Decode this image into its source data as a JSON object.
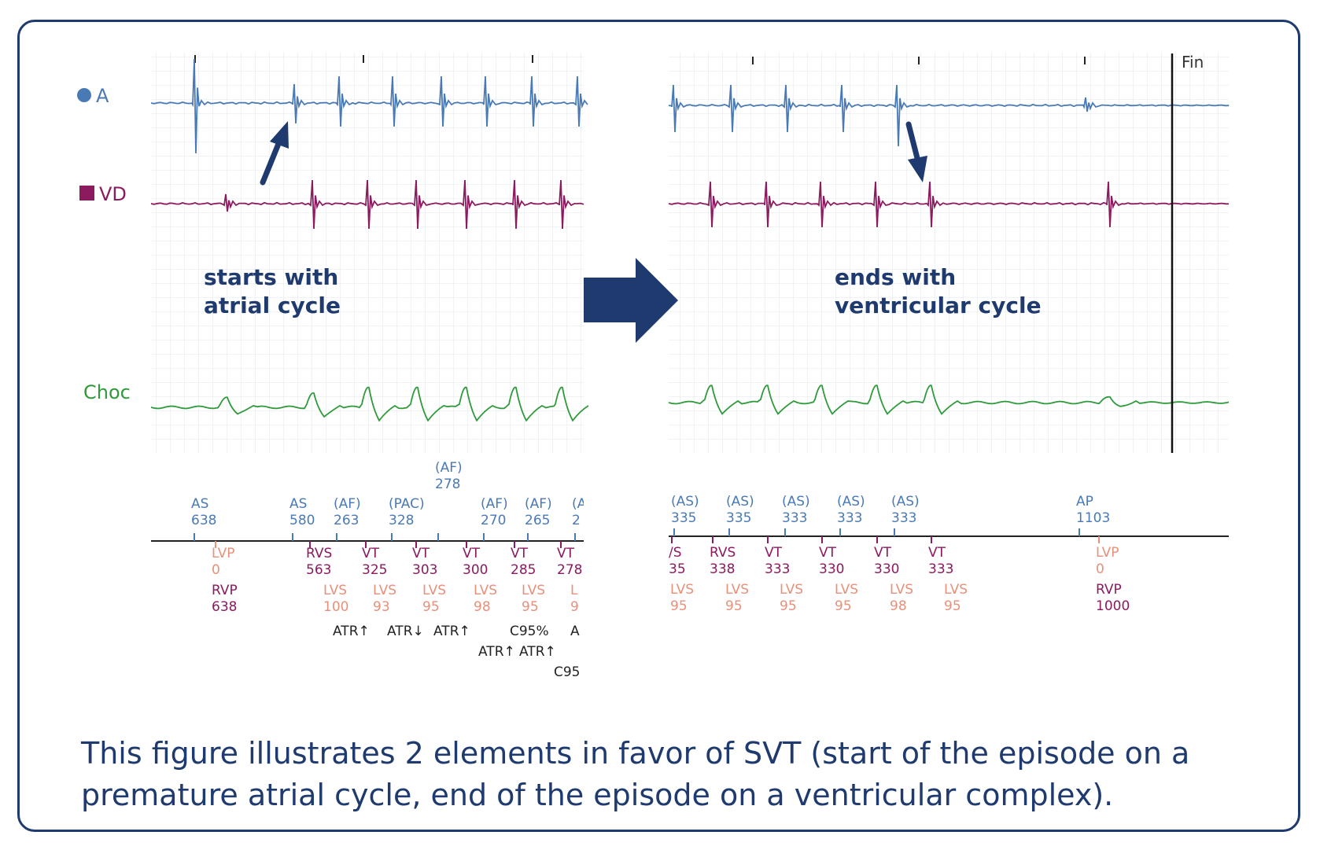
{
  "channels": {
    "a": {
      "label": "A",
      "color": "#4a7ab5"
    },
    "vd": {
      "label": "VD",
      "color": "#8c1a5e"
    },
    "choc": {
      "label": "Choc",
      "color": "#2e9a3a"
    }
  },
  "end_marker_label": "Fin",
  "annotations": {
    "left_line1": "starts with",
    "left_line2": "atrial cycle",
    "right_line1": "ends with",
    "right_line2": "ventricular cycle"
  },
  "caption": "This figure illustrates 2 elements in favor of SVT (start of the episode on a premature atrial cycle, end of the episode on a ventricular complex).",
  "colors": {
    "frame": "#1e3a6e",
    "atrial_marker": "#4a7ab5",
    "ventricular_marker": "#8c1a5e",
    "lv_marker": "#e8907a",
    "text_marker": "#222222"
  },
  "left_markers": {
    "above": [
      {
        "l1": "AS",
        "l2": "638"
      },
      {
        "l1": "AS",
        "l2": "580"
      },
      {
        "l1": "(AF)",
        "l2": "263"
      },
      {
        "l1": "(PAC)",
        "l2": "328"
      },
      {
        "l1": "(AF)",
        "l2": "278"
      },
      {
        "l1": "(AF)",
        "l2": "270"
      },
      {
        "l1": "(AF)",
        "l2": "265"
      },
      {
        "l1": "(A",
        "l2": "2"
      }
    ],
    "below": [
      {
        "l1": "LVP",
        "l2": "0",
        "tone": "lv"
      },
      {
        "l1": "RVP",
        "l2": "638",
        "tone": "rv"
      },
      {
        "l1": "RVS",
        "l2": "563",
        "tone": "rv"
      },
      {
        "l1": "VT",
        "l2": "325",
        "tone": "rv"
      },
      {
        "l1": "VT",
        "l2": "303",
        "tone": "rv"
      },
      {
        "l1": "VT",
        "l2": "300",
        "tone": "rv"
      },
      {
        "l1": "VT",
        "l2": "285",
        "tone": "rv"
      },
      {
        "l1": "VT",
        "l2": "278",
        "tone": "rv"
      },
      {
        "l1": "LVS",
        "l2": "100",
        "tone": "lv"
      },
      {
        "l1": "LVS",
        "l2": "93",
        "tone": "lv"
      },
      {
        "l1": "LVS",
        "l2": "95",
        "tone": "lv"
      },
      {
        "l1": "LVS",
        "l2": "98",
        "tone": "lv"
      },
      {
        "l1": "LVS",
        "l2": "95",
        "tone": "lv"
      },
      {
        "l1": "L",
        "l2": "9",
        "tone": "lv"
      }
    ],
    "events": [
      "ATR↑",
      "ATR↓",
      "ATR↑",
      "C95%",
      "A",
      "ATR↑",
      "ATR↑",
      "C95"
    ]
  },
  "right_markers": {
    "above": [
      {
        "l1": "(AS)",
        "l2": "335"
      },
      {
        "l1": "(AS)",
        "l2": "335"
      },
      {
        "l1": "(AS)",
        "l2": "333"
      },
      {
        "l1": "(AS)",
        "l2": "333"
      },
      {
        "l1": "(AS)",
        "l2": "333"
      },
      {
        "l1": "AP",
        "l2": "1103"
      }
    ],
    "below": [
      {
        "l1": "/S",
        "l2": "35",
        "tone": "rv"
      },
      {
        "l1": "RVS",
        "l2": "338",
        "tone": "rv"
      },
      {
        "l1": "VT",
        "l2": "333",
        "tone": "rv"
      },
      {
        "l1": "VT",
        "l2": "330",
        "tone": "rv"
      },
      {
        "l1": "VT",
        "l2": "330",
        "tone": "rv"
      },
      {
        "l1": "VT",
        "l2": "333",
        "tone": "rv"
      },
      {
        "l1": "LVS",
        "l2": "95",
        "tone": "lv"
      },
      {
        "l1": "LVS",
        "l2": "95",
        "tone": "lv"
      },
      {
        "l1": "LVS",
        "l2": "95",
        "tone": "lv"
      },
      {
        "l1": "LVS",
        "l2": "95",
        "tone": "lv"
      },
      {
        "l1": "LVS",
        "l2": "98",
        "tone": "lv"
      },
      {
        "l1": "LVS",
        "l2": "95",
        "tone": "lv"
      },
      {
        "l1": "LVP",
        "l2": "0",
        "tone": "lv"
      },
      {
        "l1": "RVP",
        "l2": "1000",
        "tone": "rv"
      }
    ]
  }
}
